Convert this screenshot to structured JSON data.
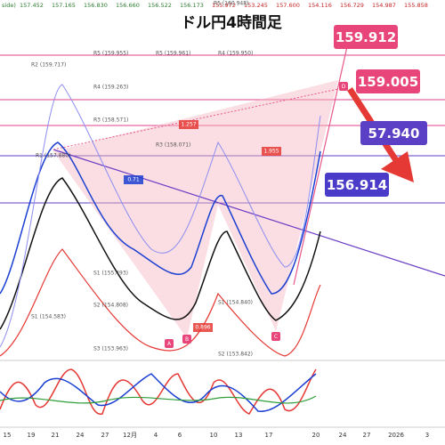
{
  "title": "ドル円4時間足",
  "top_bar": [
    "side)",
    "157.452",
    "157.165",
    "156.830",
    "156.660",
    "156.522",
    "156.173",
    "155.972",
    "153.245",
    "157.600",
    "154.116",
    "156.729",
    "154.987",
    "155.858"
  ],
  "price_tags": [
    "159.912",
    "159.005",
    "57.940",
    "156.914"
  ],
  "pivots": [
    "R5 (160.948)",
    "R5 (159.955)",
    "R5 (159.961)",
    "R4 (159.950)",
    "R2 (159.717)",
    "R4 (159.263)",
    "R3 (158.571)",
    "R3 (158.071)",
    "R1 (157.880)",
    "S1 (155.493)",
    "S2 (154.808)",
    "S3 (153.963)",
    "S1 (154.840)",
    "S2 (153.842)",
    "S1 (154.583)"
  ],
  "ratios": [
    "1.257",
    "1.955",
    "0.71",
    "0.896"
  ],
  "points": [
    "A",
    "B",
    "C",
    "D"
  ],
  "x_axis": [
    "15",
    "19",
    "21",
    "24",
    "27",
    "12月",
    "4",
    "6",
    "10",
    "13",
    "17",
    "20",
    "24",
    "27",
    "2026",
    "3"
  ]
}
